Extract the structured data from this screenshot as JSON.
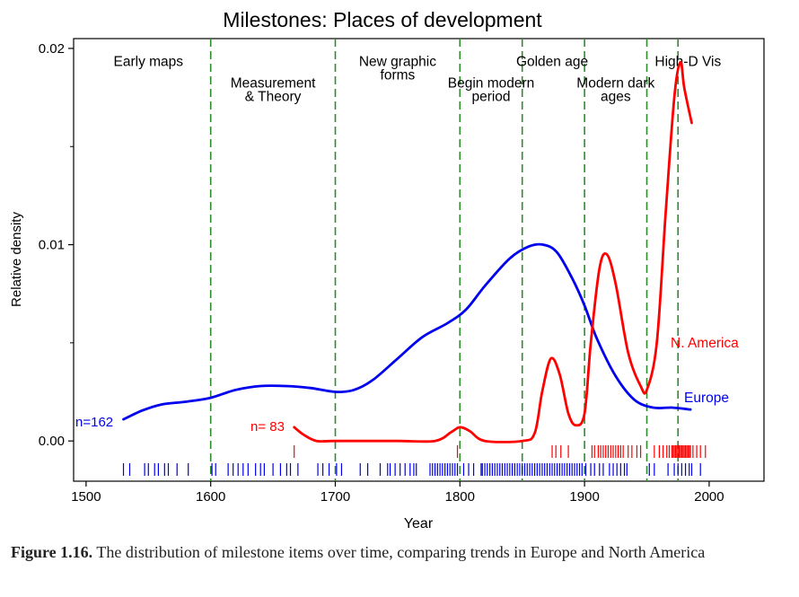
{
  "chart_data": {
    "type": "line",
    "title": "Milestones: Places of development",
    "xlabel": "Year",
    "ylabel": "Relative density",
    "xlim": [
      1490,
      2044
    ],
    "ylim": [
      -0.00205,
      0.0205
    ],
    "x_ticks": [
      1500,
      1600,
      1700,
      1800,
      1900,
      2000
    ],
    "y_ticks": [
      0.0,
      0.01,
      0.02
    ],
    "y_tick_labels": [
      "0.00",
      "0.01",
      "0.02"
    ],
    "grid": false,
    "period_boundaries": [
      1600,
      1700,
      1800,
      1850,
      1900,
      1950,
      1975
    ],
    "period_labels": [
      {
        "lines": [
          "Early maps"
        ],
        "x": 1550,
        "y": 0.0191
      },
      {
        "lines": [
          "Measurement",
          "& Theory"
        ],
        "x": 1650,
        "y": 0.018
      },
      {
        "lines": [
          "New graphic",
          "forms"
        ],
        "x": 1750,
        "y": 0.0191
      },
      {
        "lines": [
          "Begin modern",
          "period"
        ],
        "x": 1825,
        "y": 0.018
      },
      {
        "lines": [
          "Golden age"
        ],
        "x": 1874,
        "y": 0.0191
      },
      {
        "lines": [
          "Modern dark",
          "ages"
        ],
        "x": 1925,
        "y": 0.018
      },
      {
        "lines": [
          "High-D Vis"
        ],
        "x": 1983,
        "y": 0.0191
      }
    ],
    "series": [
      {
        "name": "Europe",
        "color": "#0000ee",
        "n_label": "n=162",
        "x": [
          1530,
          1545,
          1560,
          1580,
          1600,
          1620,
          1640,
          1660,
          1680,
          1700,
          1715,
          1730,
          1750,
          1770,
          1790,
          1805,
          1820,
          1840,
          1855,
          1867,
          1878,
          1890,
          1900,
          1910,
          1925,
          1940,
          1955,
          1970,
          1985
        ],
        "values": [
          0.0011,
          0.00155,
          0.00185,
          0.002,
          0.0022,
          0.0026,
          0.0028,
          0.0028,
          0.0027,
          0.0025,
          0.0026,
          0.0031,
          0.0042,
          0.0053,
          0.006,
          0.0067,
          0.0079,
          0.0093,
          0.0099,
          0.01,
          0.0096,
          0.0083,
          0.0069,
          0.0052,
          0.0033,
          0.0021,
          0.0017,
          0.0017,
          0.0016
        ]
      },
      {
        "name": "N. America",
        "color": "#ff0000",
        "n_label": "n= 83",
        "x": [
          1667,
          1675,
          1685,
          1700,
          1750,
          1780,
          1793,
          1800,
          1808,
          1820,
          1850,
          1860,
          1866,
          1873,
          1880,
          1887,
          1893,
          1900,
          1905,
          1912,
          1918,
          1925,
          1935,
          1945,
          1950,
          1958,
          1965,
          1972,
          1977,
          1980,
          1986
        ],
        "values": [
          0.0007,
          0.0003,
          0.0,
          0.0,
          0.0,
          0.0,
          0.00045,
          0.0007,
          0.0005,
          0.0,
          0.0,
          0.0004,
          0.0025,
          0.0042,
          0.0034,
          0.0014,
          0.0008,
          0.0014,
          0.005,
          0.0088,
          0.0095,
          0.008,
          0.0045,
          0.0028,
          0.0026,
          0.005,
          0.0115,
          0.0175,
          0.0193,
          0.018,
          0.0162
        ]
      }
    ],
    "rug": {
      "N. America": [
        1667,
        1798,
        1874,
        1877,
        1881,
        1887,
        1906,
        1908,
        1911,
        1913,
        1915,
        1917,
        1919,
        1921,
        1923,
        1925,
        1927,
        1929,
        1931,
        1935,
        1938,
        1942,
        1945,
        1956,
        1960,
        1963,
        1966,
        1968,
        1970,
        1971,
        1972,
        1973,
        1974,
        1975,
        1976,
        1977,
        1978,
        1979,
        1980,
        1981,
        1982,
        1983,
        1984,
        1985,
        1987,
        1990,
        1993,
        1997
      ],
      "Europe": [
        1530,
        1535,
        1547,
        1550,
        1555,
        1558,
        1563,
        1566,
        1573,
        1582,
        1601,
        1604,
        1614,
        1618,
        1622,
        1626,
        1630,
        1636,
        1640,
        1643,
        1650,
        1656,
        1661,
        1664,
        1670,
        1686,
        1690,
        1695,
        1701,
        1705,
        1720,
        1726,
        1736,
        1742,
        1744,
        1748,
        1752,
        1756,
        1760,
        1763,
        1765,
        1776,
        1778,
        1780,
        1782,
        1784,
        1786,
        1788,
        1790,
        1792,
        1794,
        1796,
        1798,
        1803,
        1807,
        1811,
        1817,
        1818,
        1820,
        1822,
        1824,
        1826,
        1828,
        1830,
        1832,
        1834,
        1836,
        1838,
        1840,
        1842,
        1844,
        1846,
        1848,
        1850,
        1852,
        1854,
        1856,
        1858,
        1860,
        1862,
        1864,
        1866,
        1868,
        1870,
        1872,
        1874,
        1876,
        1878,
        1880,
        1882,
        1884,
        1886,
        1888,
        1890,
        1892,
        1894,
        1896,
        1898,
        1901,
        1905,
        1908,
        1912,
        1915,
        1920,
        1923,
        1926,
        1929,
        1932,
        1934,
        1952,
        1956,
        1967,
        1972,
        1975,
        1978,
        1981,
        1984,
        1986,
        1993
      ]
    }
  },
  "caption": {
    "label": "Figure 1.16.",
    "text": " The distribution of milestone items over time, comparing trends in Europe and North America"
  }
}
